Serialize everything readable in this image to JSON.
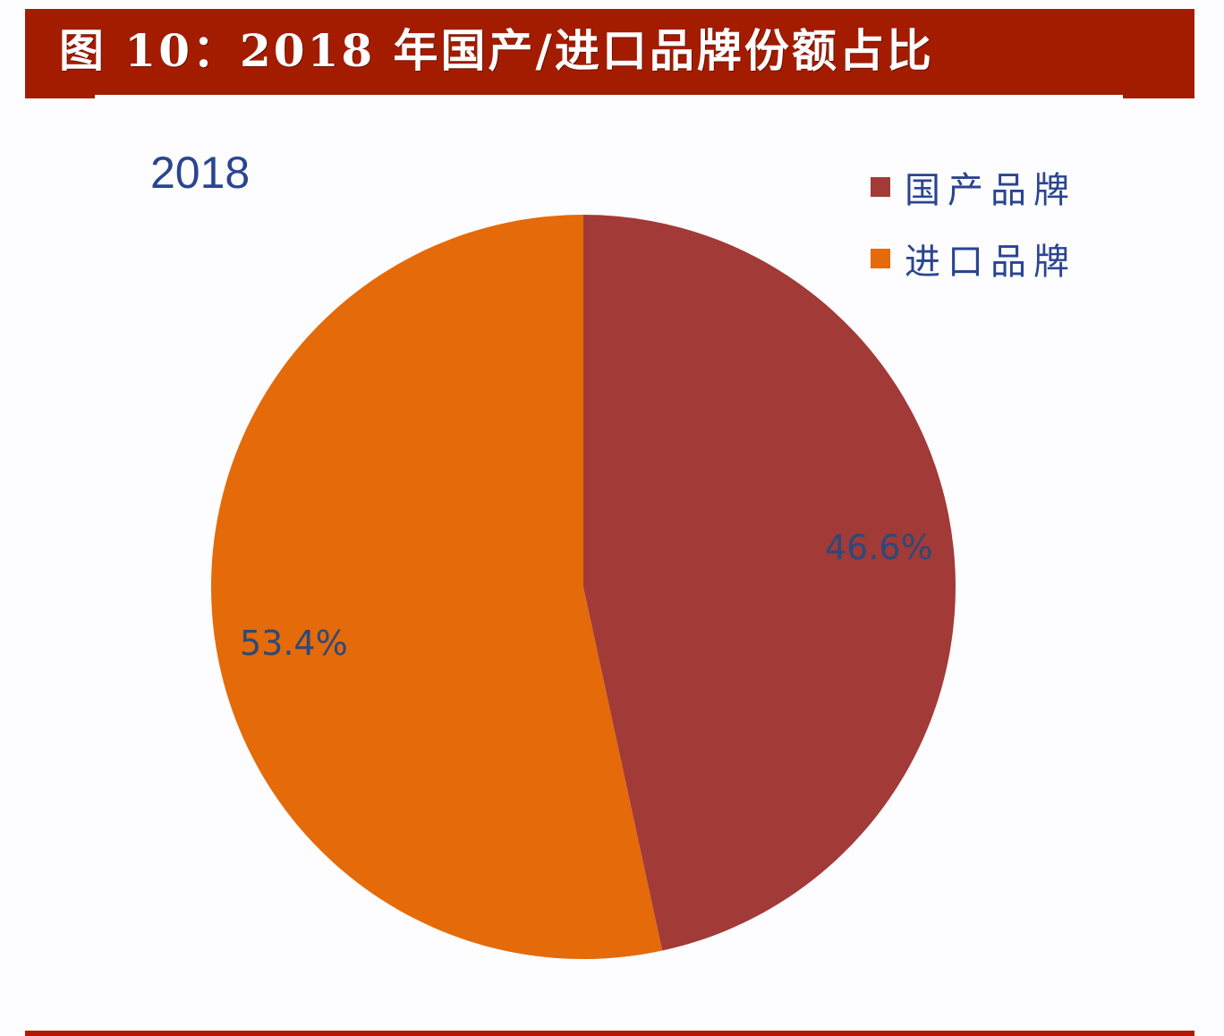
{
  "header": {
    "title": "图 10：2018 年国产/进口品牌份额占比",
    "background_color": "#a41c00",
    "text_color": "#ffffff"
  },
  "chart": {
    "year_label": "2018",
    "legend": [
      {
        "label": "国产品牌",
        "color": "#a23a38"
      },
      {
        "label": "进口品牌",
        "color": "#e46a0a"
      }
    ],
    "slices": [
      {
        "name": "国产品牌",
        "value": 46.6,
        "label": "46.6%",
        "color": "#a23a38"
      },
      {
        "name": "进口品牌",
        "value": 53.4,
        "label": "53.4%",
        "color": "#e46a0a"
      }
    ]
  },
  "chart_data": {
    "type": "pie",
    "title": "图 10：2018 年国产/进口品牌份额占比",
    "subtitle": "2018",
    "categories": [
      "国产品牌",
      "进口品牌"
    ],
    "values": [
      46.6,
      53.4
    ],
    "unit": "%",
    "data_labels": [
      "46.6%",
      "53.4%"
    ],
    "colors": [
      "#a23a38",
      "#e46a0a"
    ],
    "start_angle": "12 o'clock, clockwise",
    "legend_position": "top-right"
  },
  "footer": {
    "rule_color": "#b51a00"
  }
}
